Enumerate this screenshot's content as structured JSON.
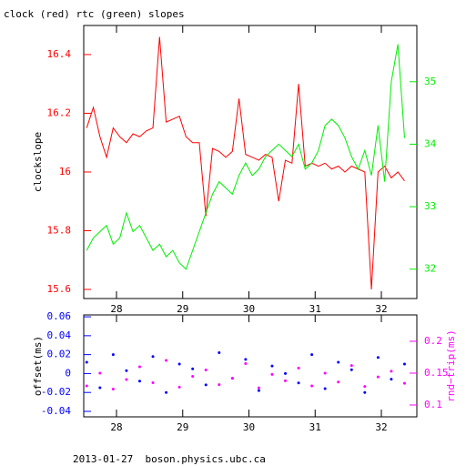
{
  "chart_data": [
    {
      "type": "line",
      "title": "clock (red) rtc (green) slopes",
      "ylabel": "clockslope",
      "x": [
        27.55,
        27.65,
        27.75,
        27.85,
        27.95,
        28.05,
        28.15,
        28.25,
        28.35,
        28.45,
        28.55,
        28.65,
        28.75,
        28.85,
        28.95,
        29.05,
        29.15,
        29.25,
        29.35,
        29.45,
        29.55,
        29.65,
        29.75,
        29.85,
        29.95,
        30.05,
        30.15,
        30.25,
        30.35,
        30.45,
        30.55,
        30.65,
        30.75,
        30.85,
        30.95,
        31.05,
        31.15,
        31.25,
        31.35,
        31.45,
        31.55,
        31.65,
        31.75,
        31.85,
        31.95,
        32.05,
        32.15,
        32.25,
        32.35
      ],
      "xlim": [
        27.505,
        32.536
      ],
      "xticks": [
        28,
        29,
        30,
        31,
        32
      ],
      "ylim": [
        15.569,
        16.499
      ],
      "yticks": [
        15.6,
        15.8,
        16,
        16.2,
        16.4
      ],
      "y2lim": [
        31.53,
        35.9
      ],
      "y2ticks": [
        32,
        33,
        34,
        35
      ],
      "series": [
        {
          "color": "#ff0000",
          "values": [
            16.15,
            16.22,
            16.12,
            16.05,
            16.15,
            16.12,
            16.1,
            16.13,
            16.12,
            16.14,
            16.15,
            16.46,
            16.17,
            16.18,
            16.19,
            16.12,
            16.1,
            16.1,
            15.85,
            16.08,
            16.07,
            16.05,
            16.07,
            16.25,
            16.06,
            16.05,
            16.04,
            16.06,
            16.05,
            15.9,
            16.04,
            16.03,
            16.3,
            16.02,
            16.03,
            16.02,
            16.03,
            16.01,
            16.02,
            16.0,
            16.02,
            16.01,
            16.0,
            15.6,
            16.0,
            16.02,
            15.98,
            16.0,
            15.97
          ]
        },
        {
          "color": "#00ee00",
          "axis": "y2",
          "values": [
            32.3,
            32.5,
            32.6,
            32.7,
            32.4,
            32.5,
            32.9,
            32.6,
            32.7,
            32.5,
            32.3,
            32.4,
            32.2,
            32.3,
            32.1,
            32.0,
            32.3,
            32.6,
            32.9,
            33.2,
            33.4,
            33.3,
            33.2,
            33.5,
            33.7,
            33.5,
            33.6,
            33.8,
            33.9,
            34.0,
            33.9,
            33.8,
            34.0,
            33.6,
            33.7,
            33.9,
            34.3,
            34.4,
            34.3,
            34.1,
            33.8,
            33.6,
            33.9,
            33.5,
            34.3,
            33.4,
            35.0,
            35.6,
            34.1
          ]
        }
      ]
    },
    {
      "type": "scatter",
      "ylabel": "offset(ms)",
      "y2label": "rnd−trip(ms)",
      "x": [
        27.55,
        27.75,
        27.95,
        28.15,
        28.35,
        28.55,
        28.75,
        28.95,
        29.15,
        29.35,
        29.55,
        29.75,
        29.95,
        30.15,
        30.35,
        30.55,
        30.75,
        30.95,
        31.15,
        31.35,
        31.55,
        31.75,
        31.95,
        32.15,
        32.35
      ],
      "xlim": [
        27.505,
        32.536
      ],
      "xticks": [
        28,
        29,
        30,
        31,
        32
      ],
      "ylim": [
        -0.0458,
        0.062
      ],
      "yticks": [
        -0.04,
        -0.02,
        0,
        0.02,
        0.04,
        0.06
      ],
      "y2lim": [
        0.0814,
        0.2414
      ],
      "y2ticks": [
        0.1,
        0.15,
        0.2
      ],
      "series": [
        {
          "color": "#0000ff",
          "values": [
            0.012,
            -0.015,
            0.02,
            0.003,
            -0.008,
            0.018,
            -0.02,
            0.01,
            0.005,
            -0.012,
            0.022,
            -0.005,
            0.015,
            -0.018,
            0.008,
            0,
            -0.01,
            0.02,
            -0.016,
            0.012,
            0.004,
            -0.02,
            0.017,
            -0.006,
            0.01
          ]
        },
        {
          "color": "#ff00ff",
          "axis": "y2",
          "values": [
            0.13,
            0.15,
            0.125,
            0.14,
            0.16,
            0.135,
            0.17,
            0.128,
            0.145,
            0.155,
            0.132,
            0.142,
            0.165,
            0.127,
            0.148,
            0.138,
            0.158,
            0.13,
            0.15,
            0.136,
            0.162,
            0.129,
            0.144,
            0.153,
            0.134
          ]
        }
      ]
    }
  ],
  "footer": "2013-01-27  boson.physics.ubc.ca"
}
